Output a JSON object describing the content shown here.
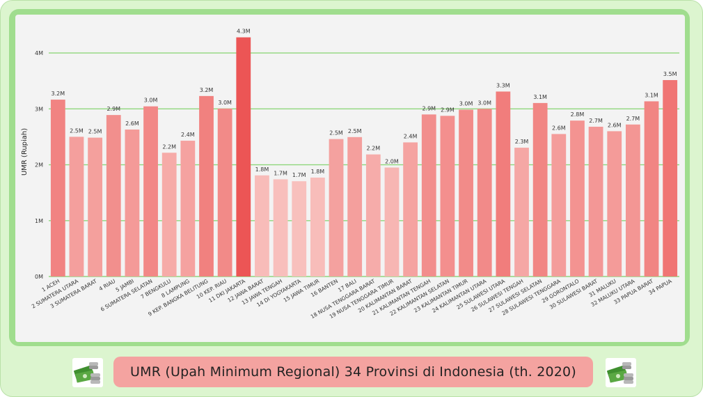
{
  "title": "UMR (Upah Minimum Regional) 34 Provinsi di Indonesia (th. 2020)",
  "icons": {
    "left": "money-stack-icon",
    "right": "money-stack-icon"
  },
  "colors": {
    "outer_bg": "#dcf5cf",
    "panel": "#a0dd8e",
    "plot_bg": "#f3f3f3",
    "grid": "#8fd67c",
    "title_box": "#f4a3a0",
    "bar_low": "#f8c0bd",
    "bar_high": "#ec5555"
  },
  "chart_data": {
    "type": "bar",
    "title": "",
    "xlabel": "",
    "ylabel": "UMR (Rupiah)",
    "ylim": [
      0,
      4300000
    ],
    "yticks": [
      {
        "value": 0,
        "label": "0M"
      },
      {
        "value": 1000000,
        "label": "1M"
      },
      {
        "value": 2000000,
        "label": "2M"
      },
      {
        "value": 3000000,
        "label": "3M"
      },
      {
        "value": 4000000,
        "label": "4M"
      }
    ],
    "grid": true,
    "categories": [
      "1 ACEH",
      "2 SUMATERA UTARA",
      "3 SUMATERA BARAT",
      "4 RIAU",
      "5 JAMBI",
      "6 SUMATERA SELATAN",
      "7 BENGKULU",
      "8 LAMPUNG",
      "9 KEP. BANGKA BELITUNG",
      "10 KEP. RIAU",
      "11 DKI JAKARTA",
      "12 JAWA BARAT",
      "13 JAWA TENGAH",
      "14 DI YOGYAKARTA",
      "15 JAWA TIMUR",
      "16 BANTEN",
      "17 BALI",
      "18 NUSA TENGGARA BARAT",
      "19 NUSA TENGGARA TIMUR",
      "20 KALIMANTAN BARAT",
      "21 KALIMANTAN TENGAH",
      "22 KALIMANTAN SELATAN",
      "23 KALIMANTAN TIMUR",
      "24 KALIMANTAN UTARA",
      "25 SULAWESI UTARA",
      "26 SULAWESI TENGAH",
      "27 SULAWESI SELATAN",
      "28 SULAWESI TENGGARA",
      "29 GORONTALO",
      "30 SULAWESI BARAT",
      "31 MALUKU",
      "32 MALUKU UTARA",
      "33 PAPUA BARAT",
      "34 PAPUA"
    ],
    "values": [
      3165000,
      2500000,
      2485000,
      2890000,
      2630000,
      3045000,
      2215000,
      2430000,
      3230000,
      3005000,
      4280000,
      1810000,
      1740000,
      1705000,
      1770000,
      2460000,
      2495000,
      2185000,
      1950000,
      2400000,
      2900000,
      2875000,
      2985000,
      3000000,
      3310000,
      2305000,
      3105000,
      2550000,
      2790000,
      2680000,
      2600000,
      2720000,
      3135000,
      3515000
    ],
    "data_labels": [
      "3.2M",
      "2.5M",
      "2.5M",
      "2.9M",
      "2.6M",
      "3.0M",
      "2.2M",
      "2.4M",
      "3.2M",
      "3.0M",
      "4.3M",
      "1.8M",
      "1.7M",
      "1.7M",
      "1.8M",
      "2.5M",
      "2.5M",
      "2.2M",
      "2.0M",
      "2.4M",
      "2.9M",
      "2.9M",
      "3.0M",
      "3.0M",
      "3.3M",
      "2.3M",
      "3.1M",
      "2.6M",
      "2.8M",
      "2.7M",
      "2.6M",
      "2.7M",
      "3.1M",
      "3.5M"
    ]
  }
}
